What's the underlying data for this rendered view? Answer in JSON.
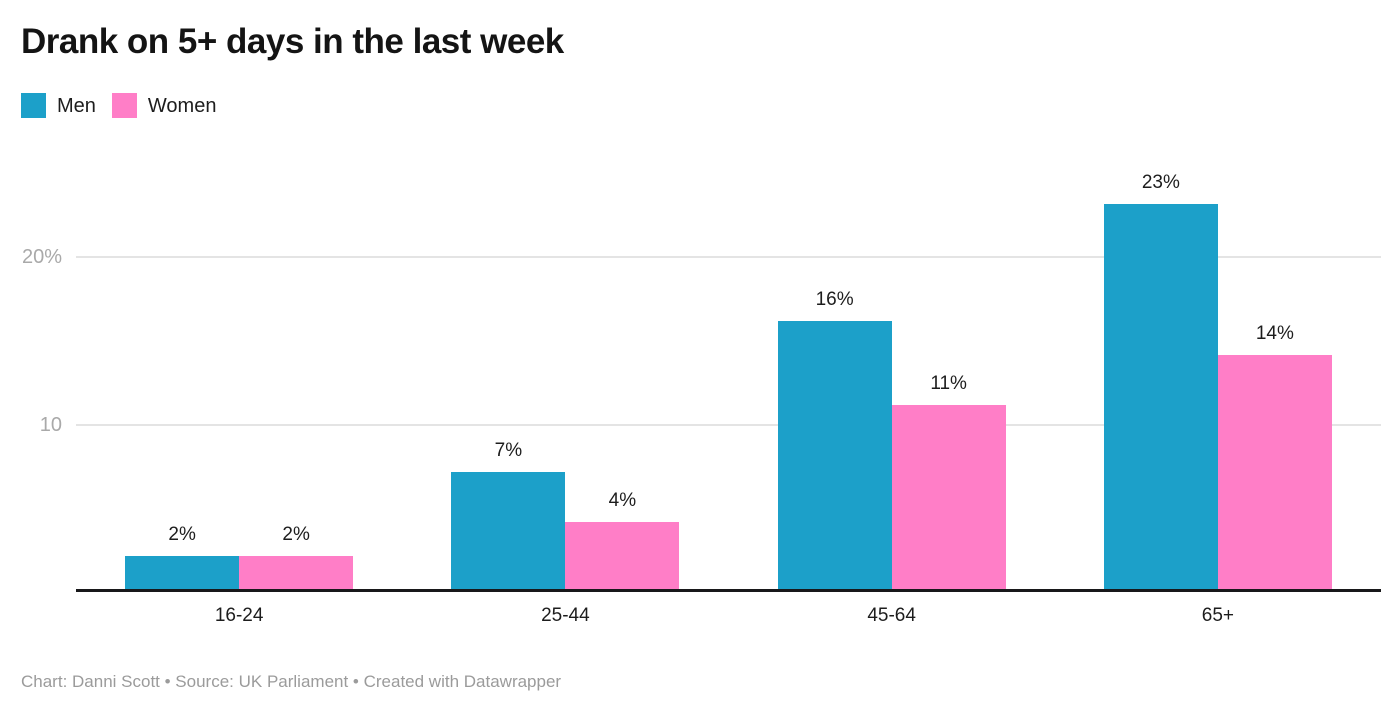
{
  "title": "Drank on 5+ days in the last week",
  "legend": {
    "items": [
      {
        "label": "Men",
        "color": "#1ca0c9"
      },
      {
        "label": "Women",
        "color": "#ff7ec7"
      }
    ]
  },
  "footer": "Chart: Danni Scott • Source: UK Parliament • Created with Datawrapper",
  "colors": {
    "men": "#1ca0c9",
    "women": "#ff7ec7",
    "axis_line": "#18181a",
    "gridline": "#e4e4e4",
    "tick_label": "#a9a9a9",
    "text": "#1d1d1d",
    "footer_text": "#9b9b9b"
  },
  "chart_data": {
    "type": "bar",
    "title": "Drank on 5+ days in the last week",
    "categories": [
      "16-24",
      "25-44",
      "45-64",
      "65+"
    ],
    "series": [
      {
        "name": "Men",
        "color": "#1ca0c9",
        "values": [
          2,
          7,
          16,
          23
        ],
        "labels": [
          "2%",
          "7%",
          "16%",
          "23%"
        ]
      },
      {
        "name": "Women",
        "color": "#ff7ec7",
        "values": [
          2,
          4,
          11,
          14
        ],
        "labels": [
          "2%",
          "4%",
          "11%",
          "14%"
        ]
      }
    ],
    "xlabel": "",
    "ylabel": "",
    "ylim": [
      0,
      26
    ],
    "yticks": [
      {
        "value": 10,
        "label": "10"
      },
      {
        "value": 20,
        "label": "20%"
      }
    ],
    "grid": "horizontal",
    "legend_position": "top-left",
    "value_label_position": "above-bar"
  }
}
